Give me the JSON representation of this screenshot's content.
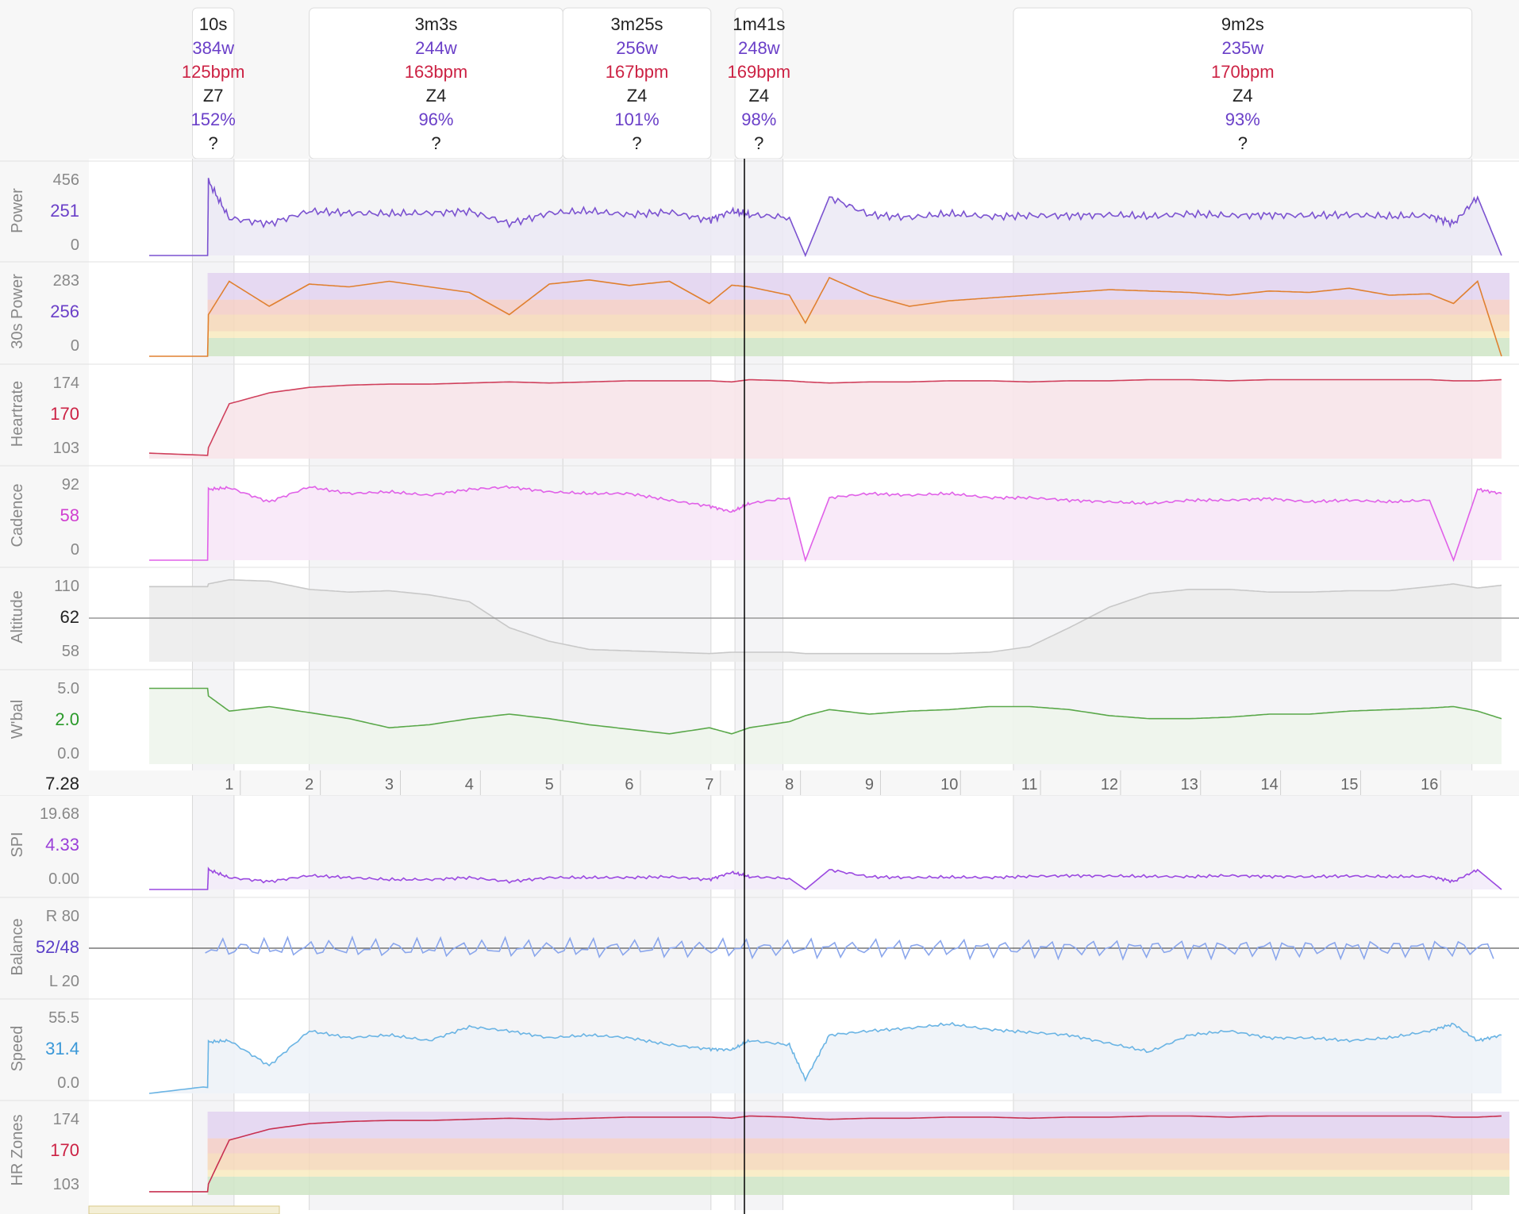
{
  "intervals": [
    {
      "duration": "10s",
      "power": "384w",
      "hr": "125bpm",
      "zone": "Z7",
      "pct": "152%",
      "extra": "?",
      "start": 0.54,
      "end": 1.06
    },
    {
      "duration": "3m3s",
      "power": "244w",
      "hr": "163bpm",
      "zone": "Z4",
      "pct": "96%",
      "extra": "?",
      "start": 2.0,
      "end": 5.17
    },
    {
      "duration": "3m25s",
      "power": "256w",
      "hr": "167bpm",
      "zone": "Z4",
      "pct": "101%",
      "extra": "?",
      "start": 5.17,
      "end": 7.02
    },
    {
      "duration": "1m41s",
      "power": "248w",
      "hr": "169bpm",
      "zone": "Z4",
      "pct": "98%",
      "extra": "?",
      "start": 7.32,
      "end": 7.92
    },
    {
      "duration": "9m2s",
      "power": "235w",
      "hr": "170bpm",
      "zone": "Z4",
      "pct": "93%",
      "extra": "?",
      "start": 10.8,
      "end": 16.53
    }
  ],
  "cursor_distance": "7.28",
  "distance_ticks": [
    "1",
    "2",
    "3",
    "4",
    "5",
    "6",
    "7",
    "8",
    "9",
    "10",
    "11",
    "12",
    "13",
    "14",
    "15",
    "16"
  ],
  "panels": [
    {
      "key": "power",
      "label": "Power",
      "ticks": [
        "456",
        "251",
        "0"
      ],
      "mid_color": "#6a3fc8",
      "line": "#7b52d0",
      "fill": "#eceaf5"
    },
    {
      "key": "p30",
      "label": "30s Power",
      "ticks": [
        "283",
        "256",
        "0"
      ],
      "mid_color": "#6a3fc8",
      "line": "#e08030",
      "fill": "#f3d2b8"
    },
    {
      "key": "heartrate",
      "label": "Heartrate",
      "ticks": [
        "174",
        "170",
        "103"
      ],
      "mid_color": "#cc2244",
      "line": "#d0405c",
      "fill": "#f8e6ea"
    },
    {
      "key": "cadence",
      "label": "Cadence",
      "ticks": [
        "92",
        "58",
        "0"
      ],
      "mid_color": "#d040d0",
      "line": "#e060e8",
      "fill": "#f8e8f8"
    },
    {
      "key": "altitude",
      "label": "Altitude",
      "ticks": [
        "110",
        "62",
        "58"
      ],
      "mid_color": "#222222",
      "line": "#c8c8c8",
      "fill": "#ececec"
    },
    {
      "key": "wbal",
      "label": "W'bal",
      "ticks": [
        "5.0",
        "2.0",
        "0.0"
      ],
      "mid_color": "#2a9a2a",
      "line": "#5aa84a",
      "fill": "#eef5ec"
    },
    {
      "key": "spi",
      "label": "SPI",
      "ticks": [
        "19.68",
        "4.33",
        "0.00"
      ],
      "mid_color": "#9a3fd8",
      "line": "#9a48e0",
      "fill": "#f3ecfa"
    },
    {
      "key": "balance",
      "label": "Balance",
      "ticks": [
        "R 80",
        "52/48",
        "L 20"
      ],
      "mid_color": "#5a3fc8",
      "line": "#8aa6ec",
      "fill": "#ffffff"
    },
    {
      "key": "speed",
      "label": "Speed",
      "ticks": [
        "55.5",
        "31.4",
        "0.0"
      ],
      "mid_color": "#3a98d8",
      "line": "#6ab4e4",
      "fill": "#eef3f8"
    },
    {
      "key": "hrzones",
      "label": "HR Zones",
      "ticks": [
        "174",
        "170",
        "103"
      ],
      "mid_color": "#cc2244",
      "line": "#c83050",
      "fill": "#f3d2b8"
    }
  ],
  "cursor_values": {
    "power": 251,
    "power_30s": 256,
    "heartrate": 170,
    "cadence": 58,
    "altitude": 62,
    "wbal": 2.0,
    "spi": 4.33,
    "balance": "52/48",
    "speed": 31.4,
    "hr_zone": 170
  },
  "chart_data": {
    "type": "line",
    "x": [
      0,
      0.73,
      0.74,
      1,
      1.5,
      2,
      2.5,
      3,
      3.5,
      4,
      4.5,
      5,
      5.5,
      6,
      6.5,
      7,
      7.28,
      7.5,
      8,
      8.2,
      8.5,
      9,
      9.5,
      10,
      10.5,
      11,
      11.5,
      12,
      12.5,
      13,
      13.5,
      14,
      14.5,
      15,
      15.5,
      16,
      16.3,
      16.6,
      16.9
    ],
    "xlabel": "",
    "series": [
      {
        "name": "Power",
        "values": [
          0,
          0,
          420,
          210,
          180,
          250,
          240,
          235,
          240,
          250,
          180,
          240,
          250,
          230,
          245,
          200,
          251,
          230,
          215,
          0,
          330,
          230,
          215,
          235,
          220,
          225,
          225,
          230,
          220,
          235,
          225,
          230,
          225,
          230,
          220,
          225,
          180,
          330,
          0
        ]
      },
      {
        "name": "30s Power",
        "values": [
          0,
          0,
          150,
          270,
          180,
          260,
          250,
          270,
          250,
          230,
          150,
          260,
          275,
          255,
          270,
          190,
          256,
          250,
          220,
          120,
          283,
          220,
          180,
          200,
          210,
          220,
          230,
          240,
          235,
          230,
          220,
          235,
          230,
          245,
          220,
          225,
          190,
          270,
          0
        ]
      },
      {
        "name": "Heartrate",
        "values": [
          105,
          103,
          110,
          150,
          160,
          165,
          167,
          168,
          168,
          169,
          170,
          169,
          170,
          171,
          171,
          171,
          170,
          172,
          171,
          170,
          169,
          170,
          170,
          171,
          171,
          170,
          171,
          171,
          172,
          172,
          171,
          172,
          172,
          172,
          172,
          172,
          171,
          171,
          172
        ]
      },
      {
        "name": "Cadence",
        "values": [
          0,
          0,
          85,
          87,
          70,
          88,
          80,
          82,
          78,
          85,
          88,
          82,
          80,
          80,
          72,
          65,
          58,
          68,
          75,
          0,
          75,
          80,
          78,
          80,
          75,
          75,
          72,
          70,
          68,
          72,
          72,
          74,
          70,
          72,
          70,
          72,
          0,
          85,
          80
        ]
      },
      {
        "name": "Altitude",
        "values": [
          110,
          110,
          112,
          115,
          114,
          108,
          106,
          107,
          104,
          99,
          80,
          70,
          64,
          63,
          62,
          61,
          62,
          62,
          62,
          61,
          61,
          61,
          61,
          61,
          62,
          66,
          80,
          95,
          105,
          108,
          108,
          106,
          106,
          107,
          107,
          110,
          112,
          109,
          111
        ]
      },
      {
        "name": "W'bal",
        "values": [
          5.0,
          5.0,
          4.5,
          3.5,
          3.8,
          3.4,
          3.0,
          2.4,
          2.6,
          3.0,
          3.3,
          3.0,
          2.6,
          2.3,
          2.0,
          2.4,
          2.0,
          2.4,
          2.8,
          3.2,
          3.6,
          3.3,
          3.5,
          3.6,
          3.8,
          3.8,
          3.6,
          3.2,
          3.0,
          3.0,
          3.1,
          3.3,
          3.3,
          3.5,
          3.6,
          3.7,
          3.8,
          3.5,
          3.0
        ]
      },
      {
        "name": "SPI",
        "values": [
          0,
          0,
          5,
          3,
          2,
          3.5,
          3,
          2.5,
          2.5,
          3,
          2,
          3,
          3,
          3,
          3.2,
          2.5,
          4.33,
          3.2,
          2.8,
          0,
          5,
          3.2,
          3,
          3.1,
          3,
          3.3,
          3.5,
          3.4,
          3.3,
          3.2,
          3.5,
          3.3,
          3.2,
          3.4,
          3.2,
          3.3,
          2,
          5,
          0
        ]
      },
      {
        "name": "Speed",
        "values": [
          0,
          5,
          37,
          38,
          20,
          45,
          40,
          42,
          38,
          48,
          45,
          40,
          42,
          40,
          35,
          32,
          31.4,
          38,
          35,
          10,
          42,
          45,
          47,
          50,
          46,
          44,
          42,
          36,
          30,
          42,
          45,
          40,
          40,
          38,
          40,
          45,
          50,
          38,
          42
        ]
      },
      {
        "name": "HR Zones",
        "values": [
          103,
          103,
          110,
          150,
          160,
          165,
          167,
          168,
          168,
          169,
          170,
          169,
          170,
          171,
          171,
          171,
          170,
          172,
          171,
          170,
          169,
          170,
          170,
          171,
          171,
          170,
          171,
          171,
          172,
          172,
          171,
          172,
          172,
          172,
          172,
          172,
          171,
          171,
          172
        ]
      }
    ],
    "grid": false,
    "legend": "none"
  }
}
